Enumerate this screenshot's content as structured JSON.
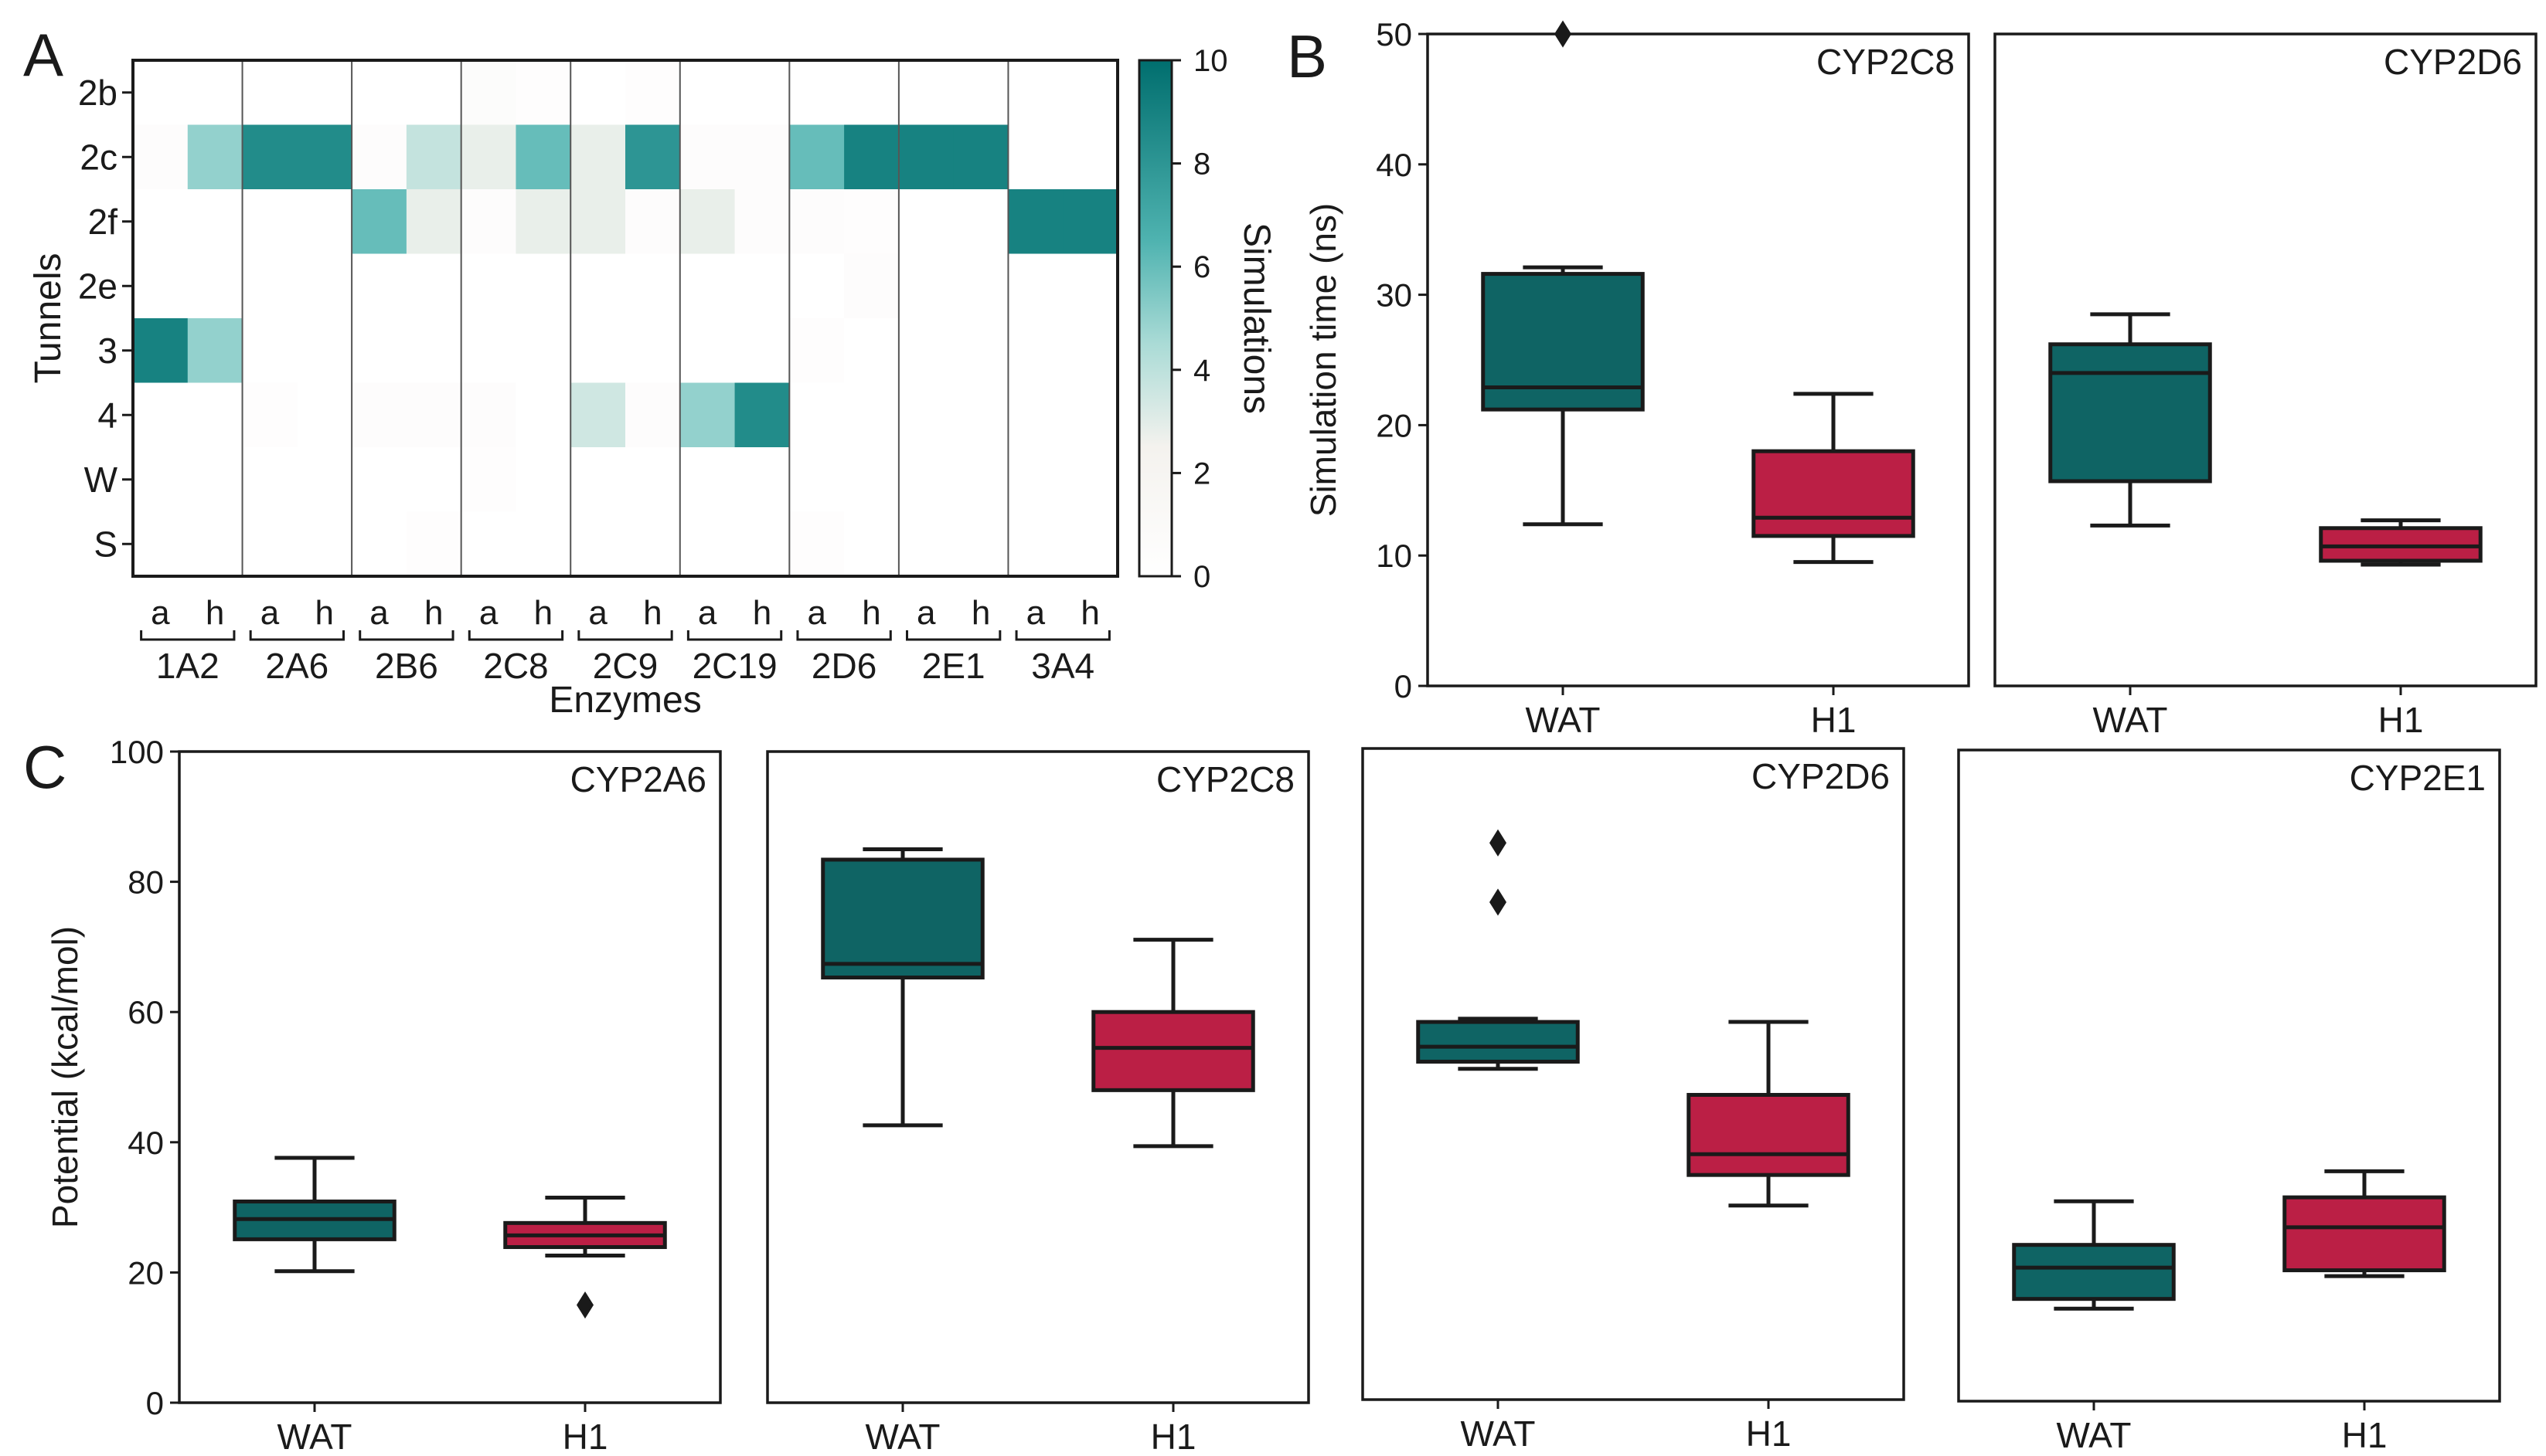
{
  "panel_labels": {
    "a": "A",
    "b": "B",
    "c": "C"
  },
  "colors": {
    "wat": "#0f6464",
    "h1": "#bb1f45",
    "cmap_low": "#ffffff",
    "cmap_high": "#006e6e",
    "line": "#1a1a1a",
    "frame": "#1a1a1a"
  },
  "chart_data": [
    {
      "id": "A",
      "type": "heatmap",
      "xlabel": "Enzymes",
      "ylabel": "Tunnels",
      "rows": [
        "2b",
        "2c",
        "2f",
        "2e",
        "3",
        "4",
        "W",
        "S"
      ],
      "sublabels": [
        "a",
        "h"
      ],
      "groups": [
        "1A2",
        "2A6",
        "2B6",
        "2C8",
        "2C9",
        "2C19",
        "2D6",
        "2E1",
        "3A4"
      ],
      "values": [
        [
          0,
          0,
          0,
          0,
          0,
          0,
          0.6,
          0.3,
          0,
          0.3,
          0,
          0,
          0,
          0,
          0,
          0,
          0,
          0
        ],
        [
          0.5,
          5.0,
          8.5,
          8.5,
          0.5,
          3.8,
          2.8,
          6.0,
          2.8,
          8.0,
          0.5,
          0.5,
          6.0,
          9.0,
          9.0,
          9.0,
          0,
          0
        ],
        [
          0,
          0,
          0,
          0,
          6.0,
          2.8,
          0.5,
          2.8,
          2.8,
          0.5,
          2.8,
          0.5,
          0.5,
          0.3,
          0,
          0,
          9.0,
          9.0
        ],
        [
          0,
          0,
          0,
          0,
          0,
          0,
          0,
          0,
          0,
          0,
          0,
          0,
          0,
          0.5,
          0,
          0,
          0,
          0
        ],
        [
          9.0,
          5.0,
          0,
          0,
          0,
          0,
          0,
          0,
          0,
          0,
          0,
          0,
          0.3,
          0,
          0,
          0,
          0,
          0
        ],
        [
          0,
          0,
          0.3,
          0,
          0.5,
          0.5,
          0.5,
          0,
          3.5,
          0.5,
          5.0,
          8.5,
          0,
          0,
          0,
          0,
          0,
          0
        ],
        [
          0,
          0,
          0,
          0,
          0,
          0,
          0.3,
          0,
          0,
          0,
          0,
          0,
          0,
          0,
          0,
          0,
          0,
          0
        ],
        [
          0,
          0,
          0,
          0,
          0,
          0.3,
          0,
          0,
          0,
          0,
          0,
          0,
          0.3,
          0,
          0,
          0,
          0,
          0
        ]
      ],
      "colorbar": {
        "label": "Simulations",
        "range": [
          0,
          10
        ],
        "ticks": [
          0,
          2,
          4,
          6,
          8,
          10
        ]
      }
    },
    {
      "id": "B",
      "type": "box",
      "ylabel": "Simulation time (ns)",
      "ylim": [
        0,
        50
      ],
      "yticks": [
        0,
        10,
        20,
        30,
        40,
        50
      ],
      "categories": [
        "WAT",
        "H1"
      ],
      "panels": [
        {
          "title": "CYP2C8",
          "boxes": [
            {
              "min": 12.4,
              "q1": 21.2,
              "median": 22.9,
              "q3": 31.6,
              "max": 32.1,
              "outliers": [
                50
              ]
            },
            {
              "min": 9.5,
              "q1": 11.5,
              "median": 12.9,
              "q3": 18.0,
              "max": 22.4,
              "outliers": []
            }
          ]
        },
        {
          "title": "CYP2D6",
          "boxes": [
            {
              "min": 12.3,
              "q1": 15.7,
              "median": 24.0,
              "q3": 26.2,
              "max": 28.5,
              "outliers": []
            },
            {
              "min": 9.3,
              "q1": 9.6,
              "median": 10.7,
              "q3": 12.1,
              "max": 12.7,
              "outliers": []
            }
          ]
        }
      ]
    },
    {
      "id": "C",
      "type": "box",
      "ylabel": "Potential (kcal/mol)",
      "ylim": [
        0,
        100
      ],
      "yticks": [
        0,
        20,
        40,
        60,
        80,
        100
      ],
      "categories": [
        "WAT",
        "H1"
      ],
      "panels": [
        {
          "title": "CYP2A6",
          "boxes": [
            {
              "min": 20.2,
              "q1": 25.1,
              "median": 28.2,
              "q3": 30.9,
              "max": 37.6,
              "outliers": []
            },
            {
              "min": 22.6,
              "q1": 23.9,
              "median": 25.7,
              "q3": 27.6,
              "max": 31.5,
              "outliers": [
                15.0
              ]
            }
          ]
        },
        {
          "title": "CYP2C8",
          "boxes": [
            {
              "min": 42.6,
              "q1": 65.3,
              "median": 67.4,
              "q3": 83.4,
              "max": 85.0,
              "outliers": []
            },
            {
              "min": 39.4,
              "q1": 48.0,
              "median": 54.5,
              "q3": 60.0,
              "max": 71.1,
              "outliers": []
            }
          ]
        },
        {
          "title": "CYP2D6",
          "boxes": [
            {
              "min": 50.8,
              "q1": 51.9,
              "median": 54.2,
              "q3": 58.0,
              "max": 58.5,
              "outliers": [
                76.4,
                85.5
              ]
            },
            {
              "min": 29.8,
              "q1": 34.5,
              "median": 37.7,
              "q3": 46.8,
              "max": 58.0,
              "outliers": []
            }
          ]
        },
        {
          "title": "CYP2E1",
          "boxes": [
            {
              "min": 14.2,
              "q1": 15.7,
              "median": 20.5,
              "q3": 24.0,
              "max": 30.7,
              "outliers": []
            },
            {
              "min": 19.2,
              "q1": 20.1,
              "median": 26.7,
              "q3": 31.3,
              "max": 35.3,
              "outliers": []
            }
          ]
        }
      ]
    }
  ]
}
